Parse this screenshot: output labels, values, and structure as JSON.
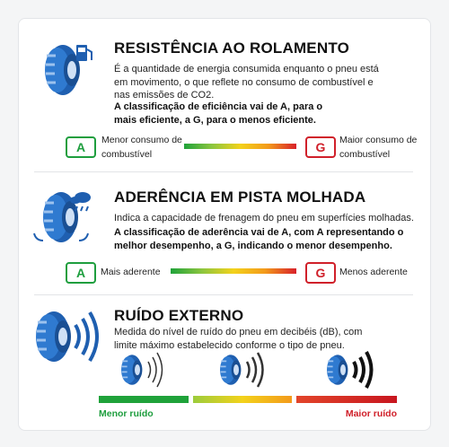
{
  "sections": [
    {
      "title": "RESISTÊNCIA AO ROLAMENTO",
      "description": "É a quantidade de energia consumida enquanto o pneu está em movimento, o que reflete no consumo de combustível e nas emissões de CO2.",
      "emphasis": "A classificação de eficiência vai de A, para o mais eficiente, a G, para o menos eficiente.",
      "scale": {
        "best_grade": "A",
        "best_label": "Menor consumo de combustível",
        "worst_grade": "G",
        "worst_label": "Maior consumo de combustível"
      }
    },
    {
      "title": "ADERÊNCIA EM PISTA MOLHADA",
      "description": "Indica a capacidade de frenagem do pneu em superfícies molhadas.",
      "emphasis": "A classificação de aderência vai de A, com A representando o melhor desempenho, a G, indicando o menor desempenho.",
      "scale": {
        "best_grade": "A",
        "best_label": "Mais aderente",
        "worst_grade": "G",
        "worst_label": "Menos aderente"
      }
    },
    {
      "title": "RUÍDO EXTERNO",
      "description": "Medida do nível de ruído do pneu em decibéis (dB), com limite máximo estabelecido conforme o tipo de pneu.",
      "scale": {
        "best_label": "Menor ruído",
        "worst_label": "Maior ruído"
      }
    }
  ]
}
